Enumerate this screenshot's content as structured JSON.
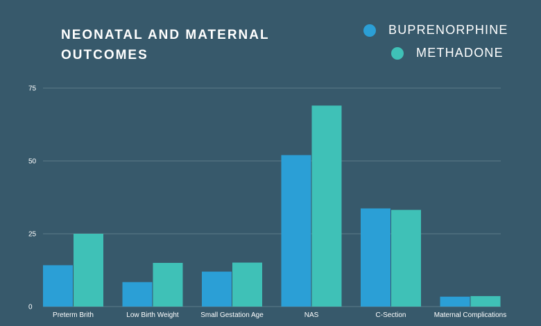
{
  "colors": {
    "background": "#37596b",
    "gridline": "#5d7b8a",
    "buprenorphine": "#2b9fd6",
    "methadone": "#3fc1b7"
  },
  "chart_data": {
    "type": "bar",
    "title": "NEONATAL AND MATERNAL OUTCOMES",
    "categories": [
      "Preterm Brith",
      "Low Birth Weight",
      "Small Gestation Age",
      "NAS",
      "C-Section",
      "Maternal Complications"
    ],
    "series": [
      {
        "name": "BUPRENORPHINE",
        "color": "#2b9fd6",
        "values": [
          14.2,
          8.4,
          12.0,
          52.0,
          33.7,
          3.4
        ]
      },
      {
        "name": "METHADONE",
        "color": "#3fc1b7",
        "values": [
          25.0,
          15.0,
          15.1,
          69.0,
          33.2,
          3.6
        ]
      }
    ],
    "ylim": [
      0,
      75
    ],
    "yticks": [
      "0",
      "25",
      "50",
      "75"
    ],
    "grid": true,
    "legend": "top-right"
  }
}
